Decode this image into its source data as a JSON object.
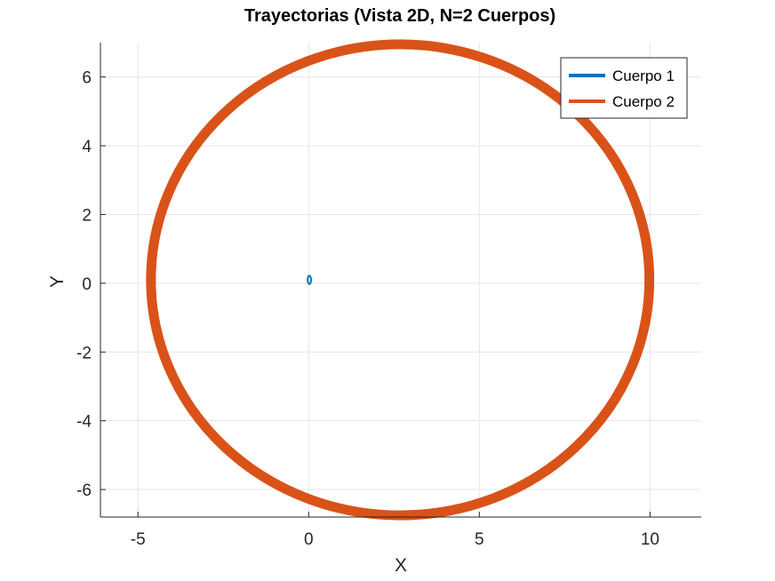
{
  "chart_data": {
    "type": "line",
    "title": "Trayectorias (Vista 2D, N=2 Cuerpos)",
    "xlabel": "X",
    "ylabel": "Y",
    "xlim": [
      -6.1,
      11.5
    ],
    "ylim": [
      -6.8,
      7.0
    ],
    "xticks": [
      -5,
      0,
      5,
      10
    ],
    "yticks": [
      -6,
      -4,
      -2,
      0,
      2,
      4,
      6
    ],
    "xtick_labels": [
      "-5",
      "0",
      "5",
      "10"
    ],
    "ytick_labels": [
      "-6",
      "-4",
      "-2",
      "0",
      "2",
      "4",
      "6"
    ],
    "grid": true,
    "legend_position": "top-right",
    "series": [
      {
        "name": "Cuerpo 1",
        "color": "#0072BD",
        "shape": "small-orbit",
        "center": [
          0.02,
          0.1
        ],
        "radius_x": 0.05,
        "radius_y": 0.12
      },
      {
        "name": "Cuerpo 2",
        "color": "#D95319",
        "shape": "ellipse-orbit",
        "center": [
          2.68,
          0.1
        ],
        "radius_x": 7.3,
        "radius_y": 6.85,
        "x_range": [
          -4.6,
          10.0
        ],
        "y_range": [
          -6.75,
          6.95
        ]
      }
    ]
  }
}
